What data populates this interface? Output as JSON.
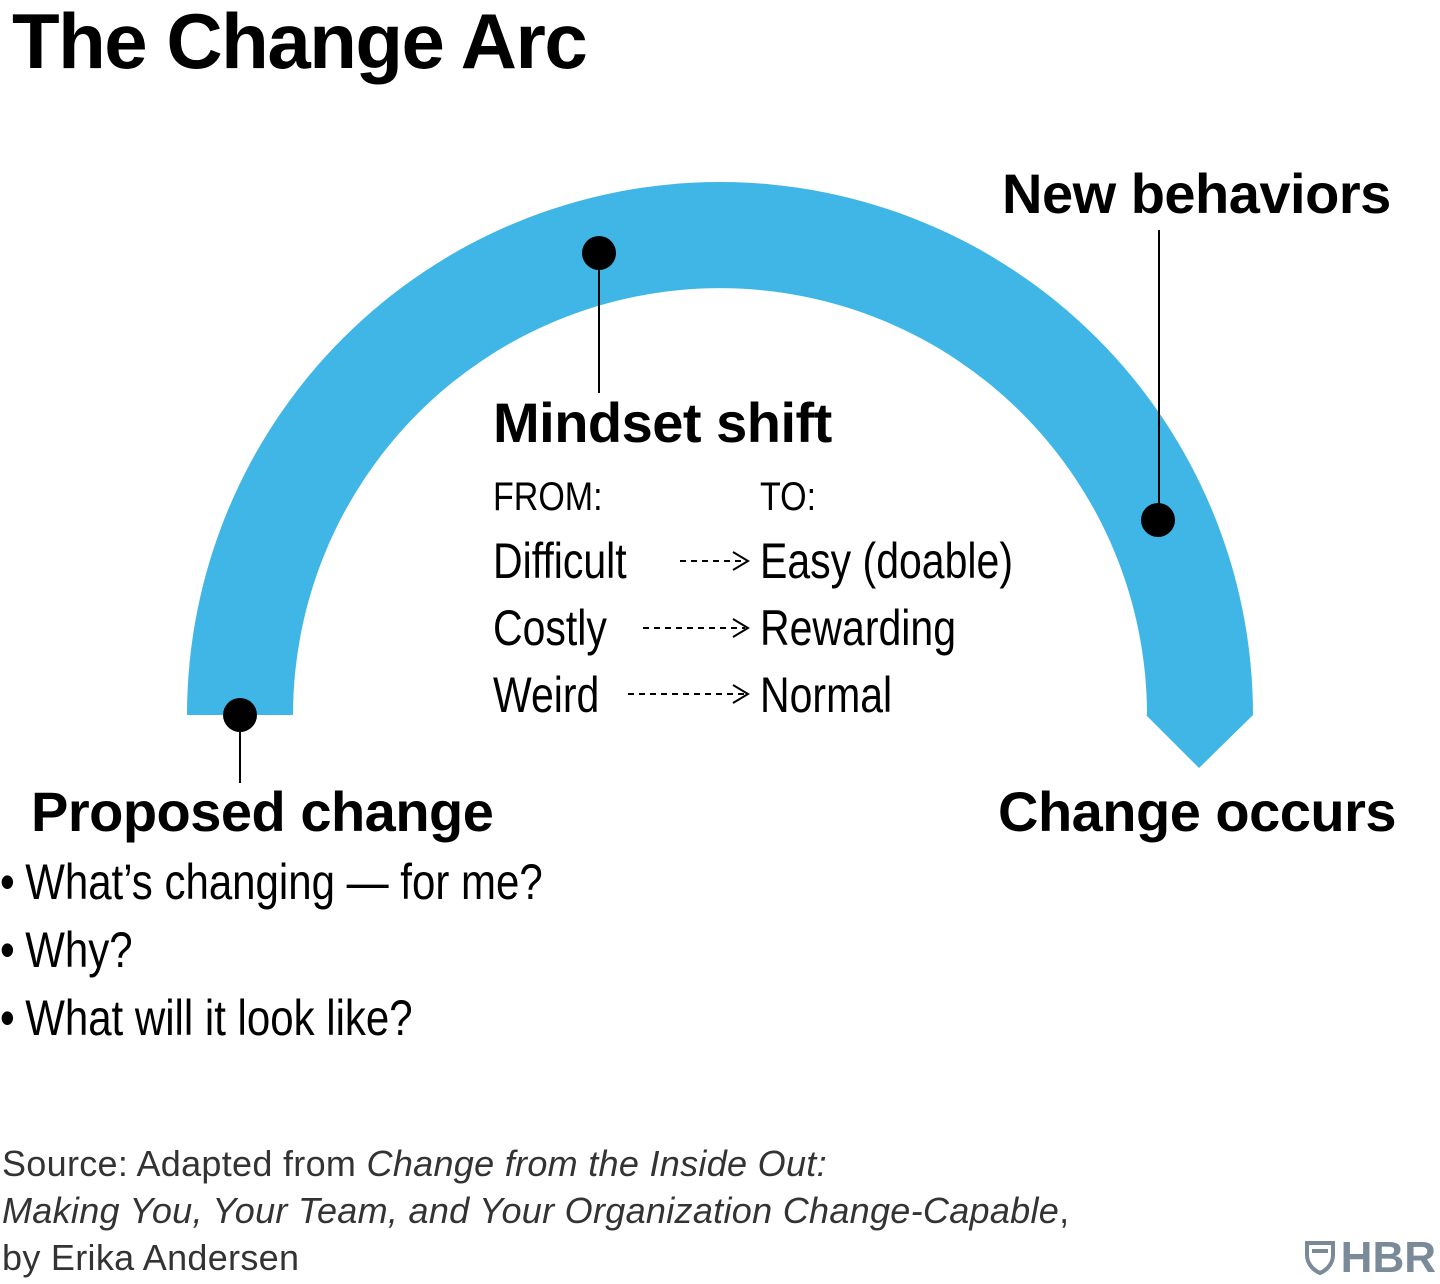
{
  "title": "The Change Arc",
  "colors": {
    "arc": "#3fb6e6",
    "marker": "#000000",
    "logo": "#7a8a99"
  },
  "labels": {
    "new_behaviors": "New behaviors",
    "mindset_shift": "Mindset shift",
    "proposed_change": "Proposed change",
    "change_occurs": "Change occurs"
  },
  "mindset": {
    "from_header": "FROM:",
    "to_header": "TO:",
    "rows": [
      {
        "from": "Difficult",
        "to": "Easy (doable)"
      },
      {
        "from": "Costly",
        "to": "Rewarding"
      },
      {
        "from": "Weird",
        "to": "Normal"
      }
    ]
  },
  "proposed_change_bullets": [
    "What’s changing — for me?",
    "Why?",
    "What will it look like?"
  ],
  "bullet_glyph": "•",
  "source": {
    "prefix": "Source: Adapted from ",
    "book_title_line1": "Change from the Inside Out:",
    "book_title_line2": "Making You, Your Team, and Your Organization Change-Capable",
    "line2_suffix": ",",
    "line3": "by Erika Andersen"
  },
  "logo": {
    "text": "HBR",
    "icon": "shield-icon"
  }
}
